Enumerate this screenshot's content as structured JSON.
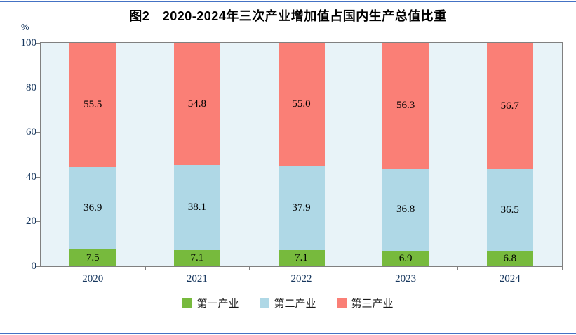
{
  "chart_data": {
    "type": "bar",
    "stacked": true,
    "title": "图2　2020-2024年三次产业增加值占国内生产总值比重",
    "y_unit": "%",
    "ylim": [
      0,
      100
    ],
    "yticks": [
      0,
      20,
      40,
      60,
      80,
      100
    ],
    "grid": false,
    "legend_position": "bottom",
    "categories": [
      "2020",
      "2021",
      "2022",
      "2023",
      "2024"
    ],
    "series": [
      {
        "name": "第一产业",
        "color": "#77BA3D",
        "values": [
          7.5,
          7.1,
          7.1,
          6.9,
          6.8
        ],
        "value_labels": [
          "7.5",
          "7.1",
          "7.1",
          "6.9",
          "6.8"
        ]
      },
      {
        "name": "第二产业",
        "color": "#AFD8E6",
        "values": [
          36.9,
          38.1,
          37.9,
          36.8,
          36.5
        ],
        "value_labels": [
          "36.9",
          "38.1",
          "37.9",
          "36.8",
          "36.5"
        ]
      },
      {
        "name": "第三产业",
        "color": "#FA7F76",
        "values": [
          55.5,
          54.8,
          55.0,
          56.3,
          56.7
        ],
        "value_labels": [
          "55.5",
          "54.8",
          "55.0",
          "56.3",
          "56.7"
        ]
      }
    ]
  },
  "style": {
    "plot_background": "#E8F3F8",
    "axis_text_color": "#17375E",
    "divider_color": "#4472C4",
    "value_label_color": "#000000"
  }
}
